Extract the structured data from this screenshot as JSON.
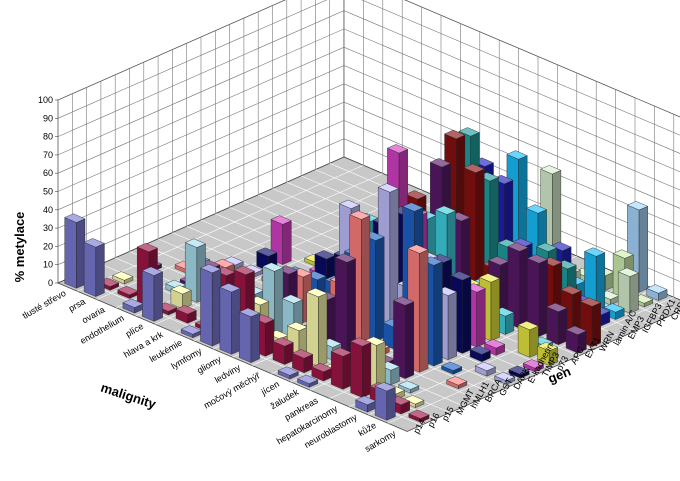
{
  "chart_data": {
    "type": "bar",
    "subtype": "3d-column",
    "title": "",
    "zlabel": "% metylace",
    "xlabel": "malignity",
    "ylabel": "gen",
    "zlim": [
      0,
      100
    ],
    "z_ticks": [
      "0",
      "10",
      "20",
      "30",
      "40",
      "50",
      "60",
      "70",
      "80",
      "90",
      "100"
    ],
    "grid": true,
    "legend": "none",
    "x_categories": [
      "tlusté střevo",
      "prsa",
      "ovaria",
      "endothelium",
      "plíce",
      "hlava a krk",
      "leukémie",
      "lymfomy",
      "gliomy",
      "ledviny",
      "močový měchýř",
      "jícen",
      "žaludek",
      "pankreas",
      "hepatokarcinomy",
      "neuroblastomy",
      "kůže",
      "sarkomy"
    ],
    "y_categories": [
      "p14",
      "p16",
      "p15",
      "MGMT",
      "hMLH1",
      "BRCA",
      "GST π",
      "DAPK",
      "E-kadherin",
      "TIMP3",
      "p73",
      "APC",
      "EXT1",
      "WRN",
      "lamin A/C",
      "EMP3",
      "IGFBP3",
      "PRDX1",
      "CRBP1",
      "RARβ2"
    ],
    "colors": [
      "#7b7bd6",
      "#a31548",
      "#ffffb0",
      "#a8e0f0",
      "#5a1a6a",
      "#ff8080",
      "#1e64c8",
      "#c0c0ff",
      "#0b0b6e",
      "#d840c8",
      "#e8e840",
      "#40d0e0",
      "#5a1a6a",
      "#8a1010",
      "#20a0a0",
      "#2020c0",
      "#18c0ff",
      "#d8f0d0",
      "#d0f0b0",
      "#a8d8ff"
    ],
    "points": [
      {
        "x": 0,
        "y": 0,
        "z": 36
      },
      {
        "x": 1,
        "y": 0,
        "z": 27
      },
      {
        "x": 3,
        "y": 0,
        "z": 3
      },
      {
        "x": 4,
        "y": 0,
        "z": 25
      },
      {
        "x": 6,
        "y": 0,
        "z": 2
      },
      {
        "x": 7,
        "y": 0,
        "z": 40
      },
      {
        "x": 8,
        "y": 0,
        "z": 34
      },
      {
        "x": 9,
        "y": 0,
        "z": 25
      },
      {
        "x": 11,
        "y": 0,
        "z": 2
      },
      {
        "x": 12,
        "y": 0,
        "z": 2
      },
      {
        "x": 15,
        "y": 0,
        "z": 4
      },
      {
        "x": 16,
        "y": 0,
        "z": 16
      },
      {
        "x": 0,
        "y": 1,
        "z": 16
      },
      {
        "x": 1,
        "y": 1,
        "z": 2
      },
      {
        "x": 2,
        "y": 1,
        "z": 2
      },
      {
        "x": 3,
        "y": 1,
        "z": 30
      },
      {
        "x": 4,
        "y": 1,
        "z": 2
      },
      {
        "x": 5,
        "y": 1,
        "z": 5
      },
      {
        "x": 6,
        "y": 1,
        "z": 2
      },
      {
        "x": 7,
        "y": 1,
        "z": 35
      },
      {
        "x": 8,
        "y": 1,
        "z": 40
      },
      {
        "x": 9,
        "y": 1,
        "z": 18
      },
      {
        "x": 10,
        "y": 1,
        "z": 10
      },
      {
        "x": 11,
        "y": 1,
        "z": 8
      },
      {
        "x": 12,
        "y": 1,
        "z": 5
      },
      {
        "x": 13,
        "y": 1,
        "z": 18
      },
      {
        "x": 14,
        "y": 1,
        "z": 28
      },
      {
        "x": 15,
        "y": 1,
        "z": 8
      },
      {
        "x": 16,
        "y": 1,
        "z": 5
      },
      {
        "x": 17,
        "y": 1,
        "z": 2
      },
      {
        "x": 1,
        "y": 2,
        "z": 2
      },
      {
        "x": 4,
        "y": 2,
        "z": 8
      },
      {
        "x": 6,
        "y": 2,
        "z": 3
      },
      {
        "x": 7,
        "y": 2,
        "z": 8
      },
      {
        "x": 8,
        "y": 2,
        "z": 20
      },
      {
        "x": 9,
        "y": 2,
        "z": 6
      },
      {
        "x": 10,
        "y": 2,
        "z": 15
      },
      {
        "x": 11,
        "y": 2,
        "z": 38
      },
      {
        "x": 12,
        "y": 2,
        "z": 2
      },
      {
        "x": 13,
        "y": 2,
        "z": 7
      },
      {
        "x": 14,
        "y": 2,
        "z": 25
      },
      {
        "x": 15,
        "y": 2,
        "z": 3
      },
      {
        "x": 16,
        "y": 2,
        "z": 2
      },
      {
        "x": 3,
        "y": 3,
        "z": 3
      },
      {
        "x": 4,
        "y": 3,
        "z": 30
      },
      {
        "x": 5,
        "y": 3,
        "z": 2
      },
      {
        "x": 7,
        "y": 3,
        "z": 18
      },
      {
        "x": 8,
        "y": 3,
        "z": 35
      },
      {
        "x": 9,
        "y": 3,
        "z": 22
      },
      {
        "x": 11,
        "y": 3,
        "z": 7
      },
      {
        "x": 12,
        "y": 3,
        "z": 4
      },
      {
        "x": 13,
        "y": 3,
        "z": 10
      },
      {
        "x": 14,
        "y": 3,
        "z": 8
      },
      {
        "x": 15,
        "y": 3,
        "z": 2
      },
      {
        "x": 1,
        "y": 4,
        "z": 2
      },
      {
        "x": 3,
        "y": 4,
        "z": 2
      },
      {
        "x": 4,
        "y": 4,
        "z": 15
      },
      {
        "x": 7,
        "y": 4,
        "z": 6
      },
      {
        "x": 8,
        "y": 4,
        "z": 30
      },
      {
        "x": 9,
        "y": 4,
        "z": 2
      },
      {
        "x": 10,
        "y": 4,
        "z": 25
      },
      {
        "x": 11,
        "y": 4,
        "z": 50
      },
      {
        "x": 13,
        "y": 4,
        "z": 4
      },
      {
        "x": 14,
        "y": 4,
        "z": 40
      },
      {
        "x": 2,
        "y": 5,
        "z": 2
      },
      {
        "x": 3,
        "y": 5,
        "z": 2
      },
      {
        "x": 4,
        "y": 5,
        "z": 12
      },
      {
        "x": 7,
        "y": 5,
        "z": 10
      },
      {
        "x": 8,
        "y": 5,
        "z": 25
      },
      {
        "x": 9,
        "y": 5,
        "z": 2
      },
      {
        "x": 10,
        "y": 5,
        "z": 30
      },
      {
        "x": 11,
        "y": 5,
        "z": 70
      },
      {
        "x": 12,
        "y": 5,
        "z": 3
      },
      {
        "x": 14,
        "y": 5,
        "z": 65
      },
      {
        "x": 16,
        "y": 5,
        "z": 2
      },
      {
        "x": 2,
        "y": 6,
        "z": 2
      },
      {
        "x": 4,
        "y": 6,
        "z": 3
      },
      {
        "x": 7,
        "y": 6,
        "z": 18
      },
      {
        "x": 8,
        "y": 6,
        "z": 20
      },
      {
        "x": 9,
        "y": 6,
        "z": 22
      },
      {
        "x": 10,
        "y": 6,
        "z": 42
      },
      {
        "x": 11,
        "y": 6,
        "z": 55
      },
      {
        "x": 12,
        "y": 6,
        "z": 12
      },
      {
        "x": 13,
        "y": 6,
        "z": 80
      },
      {
        "x": 14,
        "y": 6,
        "z": 55
      },
      {
        "x": 15,
        "y": 6,
        "z": 2
      },
      {
        "x": 3,
        "y": 7,
        "z": 2
      },
      {
        "x": 4,
        "y": 7,
        "z": 2
      },
      {
        "x": 5,
        "y": 7,
        "z": 2
      },
      {
        "x": 7,
        "y": 7,
        "z": 4
      },
      {
        "x": 8,
        "y": 7,
        "z": 3
      },
      {
        "x": 9,
        "y": 7,
        "z": 60
      },
      {
        "x": 10,
        "y": 7,
        "z": 30
      },
      {
        "x": 11,
        "y": 7,
        "z": 78
      },
      {
        "x": 12,
        "y": 7,
        "z": 30
      },
      {
        "x": 13,
        "y": 7,
        "z": 50
      },
      {
        "x": 14,
        "y": 7,
        "z": 35
      },
      {
        "x": 16,
        "y": 7,
        "z": 3
      },
      {
        "x": 17,
        "y": 7,
        "z": 2
      },
      {
        "x": 4,
        "y": 8,
        "z": 8
      },
      {
        "x": 5,
        "y": 8,
        "z": 2
      },
      {
        "x": 7,
        "y": 8,
        "z": 20
      },
      {
        "x": 8,
        "y": 8,
        "z": 25
      },
      {
        "x": 9,
        "y": 8,
        "z": 2
      },
      {
        "x": 10,
        "y": 8,
        "z": 52
      },
      {
        "x": 11,
        "y": 8,
        "z": 62
      },
      {
        "x": 12,
        "y": 8,
        "z": 10
      },
      {
        "x": 13,
        "y": 8,
        "z": 45
      },
      {
        "x": 14,
        "y": 8,
        "z": 40
      },
      {
        "x": 15,
        "y": 8,
        "z": 4
      },
      {
        "x": 17,
        "y": 8,
        "z": 2
      },
      {
        "x": 4,
        "y": 9,
        "z": 22
      },
      {
        "x": 6,
        "y": 9,
        "z": 4
      },
      {
        "x": 8,
        "y": 9,
        "z": 18
      },
      {
        "x": 10,
        "y": 9,
        "z": 88
      },
      {
        "x": 11,
        "y": 9,
        "z": 58
      },
      {
        "x": 13,
        "y": 9,
        "z": 30
      },
      {
        "x": 14,
        "y": 9,
        "z": 30
      },
      {
        "x": 15,
        "y": 9,
        "z": 4
      },
      {
        "x": 17,
        "y": 9,
        "z": 2
      },
      {
        "x": 5,
        "y": 10,
        "z": 2
      },
      {
        "x": 8,
        "y": 10,
        "z": 28
      },
      {
        "x": 9,
        "y": 10,
        "z": 25
      },
      {
        "x": 10,
        "y": 10,
        "z": 35
      },
      {
        "x": 11,
        "y": 10,
        "z": 30
      },
      {
        "x": 13,
        "y": 10,
        "z": 25
      },
      {
        "x": 14,
        "y": 10,
        "z": 32
      },
      {
        "x": 16,
        "y": 10,
        "z": 15
      },
      {
        "x": 17,
        "y": 10,
        "z": 8
      },
      {
        "x": 6,
        "y": 11,
        "z": 4
      },
      {
        "x": 7,
        "y": 11,
        "z": 30
      },
      {
        "x": 8,
        "y": 11,
        "z": 20
      },
      {
        "x": 9,
        "y": 11,
        "z": 30
      },
      {
        "x": 10,
        "y": 11,
        "z": 45
      },
      {
        "x": 11,
        "y": 11,
        "z": 52
      },
      {
        "x": 12,
        "y": 11,
        "z": 15
      },
      {
        "x": 13,
        "y": 11,
        "z": 22
      },
      {
        "x": 14,
        "y": 11,
        "z": 10
      },
      {
        "x": 16,
        "y": 11,
        "z": 3
      },
      {
        "x": 7,
        "y": 12,
        "z": 20
      },
      {
        "x": 8,
        "y": 12,
        "z": 30
      },
      {
        "x": 9,
        "y": 12,
        "z": 38
      },
      {
        "x": 10,
        "y": 12,
        "z": 70
      },
      {
        "x": 11,
        "y": 12,
        "z": 45
      },
      {
        "x": 12,
        "y": 12,
        "z": 4
      },
      {
        "x": 13,
        "y": 12,
        "z": 30
      },
      {
        "x": 14,
        "y": 12,
        "z": 42
      },
      {
        "x": 15,
        "y": 12,
        "z": 40
      },
      {
        "x": 16,
        "y": 12,
        "z": 18
      },
      {
        "x": 17,
        "y": 12,
        "z": 10
      },
      {
        "x": 8,
        "y": 13,
        "z": 40
      },
      {
        "x": 9,
        "y": 13,
        "z": 25
      },
      {
        "x": 10,
        "y": 13,
        "z": 82
      },
      {
        "x": 11,
        "y": 13,
        "z": 68
      },
      {
        "x": 12,
        "y": 13,
        "z": 20
      },
      {
        "x": 13,
        "y": 13,
        "z": 15
      },
      {
        "x": 14,
        "y": 13,
        "z": 25
      },
      {
        "x": 15,
        "y": 13,
        "z": 35
      },
      {
        "x": 16,
        "y": 13,
        "z": 24
      },
      {
        "x": 17,
        "y": 13,
        "z": 22
      },
      {
        "x": 9,
        "y": 14,
        "z": 45
      },
      {
        "x": 10,
        "y": 14,
        "z": 80
      },
      {
        "x": 11,
        "y": 14,
        "z": 60
      },
      {
        "x": 12,
        "y": 14,
        "z": 28
      },
      {
        "x": 13,
        "y": 14,
        "z": 20
      },
      {
        "x": 14,
        "y": 14,
        "z": 35
      },
      {
        "x": 15,
        "y": 14,
        "z": 30
      },
      {
        "x": 16,
        "y": 14,
        "z": 12
      },
      {
        "x": 10,
        "y": 15,
        "z": 60
      },
      {
        "x": 11,
        "y": 15,
        "z": 55
      },
      {
        "x": 12,
        "y": 15,
        "z": 25
      },
      {
        "x": 13,
        "y": 15,
        "z": 12
      },
      {
        "x": 14,
        "y": 15,
        "z": 32
      },
      {
        "x": 15,
        "y": 15,
        "z": 8
      },
      {
        "x": 16,
        "y": 15,
        "z": 6
      },
      {
        "x": 11,
        "y": 16,
        "z": 65
      },
      {
        "x": 12,
        "y": 16,
        "z": 40
      },
      {
        "x": 13,
        "y": 16,
        "z": 18
      },
      {
        "x": 14,
        "y": 16,
        "z": 10
      },
      {
        "x": 15,
        "y": 16,
        "z": 30
      },
      {
        "x": 16,
        "y": 16,
        "z": 4
      },
      {
        "x": 12,
        "y": 17,
        "z": 58
      },
      {
        "x": 13,
        "y": 17,
        "z": 8
      },
      {
        "x": 14,
        "y": 17,
        "z": 4
      },
      {
        "x": 15,
        "y": 17,
        "z": 3
      },
      {
        "x": 16,
        "y": 17,
        "z": 20
      },
      {
        "x": 13,
        "y": 18,
        "z": 3
      },
      {
        "x": 14,
        "y": 18,
        "z": 8
      },
      {
        "x": 15,
        "y": 18,
        "z": 22
      },
      {
        "x": 16,
        "y": 18,
        "z": 2
      },
      {
        "x": 15,
        "y": 19,
        "z": 45
      },
      {
        "x": 16,
        "y": 19,
        "z": 4
      }
    ]
  }
}
